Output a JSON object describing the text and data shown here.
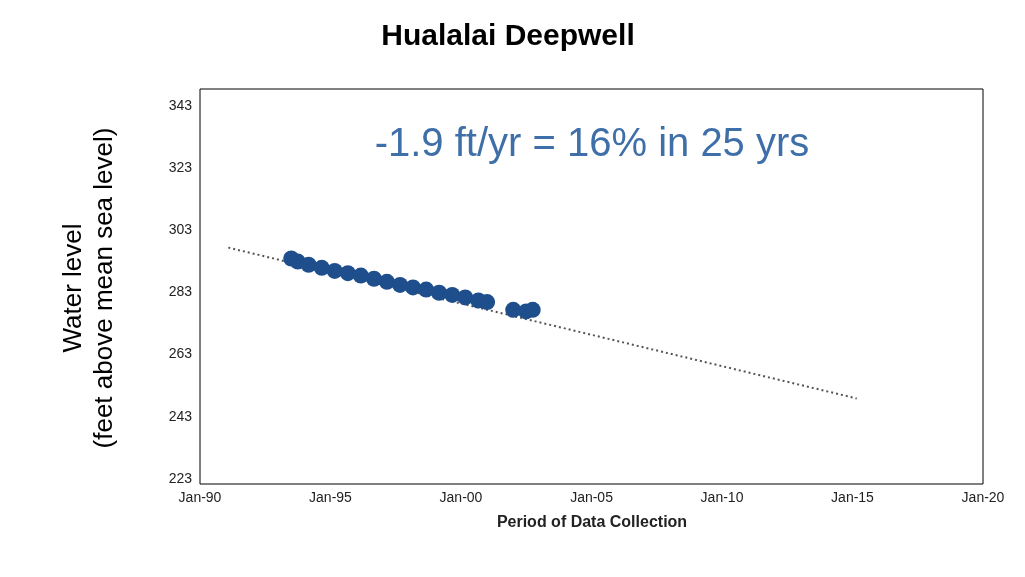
{
  "chart_data": {
    "type": "scatter",
    "title": "Hualalai Deepwell",
    "xlabel": "Period of Data Collection",
    "ylabel": "Water level\n(feet above mean sea level)",
    "annotations": [
      "-1.9 ft/yr = 16% in 25 yrs"
    ],
    "x": [
      "1993-07",
      "1993-10",
      "1994-03",
      "1994-09",
      "1995-03",
      "1995-09",
      "1996-03",
      "1996-09",
      "1997-03",
      "1997-09",
      "1998-03",
      "1998-09",
      "1999-03",
      "1999-09",
      "2000-03",
      "2000-09",
      "2001-01",
      "2002-01",
      "2002-07",
      "2002-10"
    ],
    "series": [
      {
        "color": "#1f4e8c",
        "marker": "circle",
        "values": [
          293.5,
          292.5,
          291.5,
          290.5,
          289.5,
          288.8,
          288,
          287,
          286,
          285,
          284.2,
          283.5,
          282.5,
          281.8,
          281,
          280,
          279.5,
          277,
          276.5,
          277
        ]
      },
      {
        "type": "line",
        "color": "#555555",
        "line_style": "dotted",
        "marker": "none",
        "x": [
          "1991-02",
          "2015-03"
        ],
        "values": [
          297,
          248.5
        ]
      }
    ],
    "xlim": [
      "1990-01",
      "2020-01"
    ],
    "xticks": [
      {
        "value": "1990-01",
        "label": "Jan-90"
      },
      {
        "value": "1995-01",
        "label": "Jan-95"
      },
      {
        "value": "2000-01",
        "label": "Jan-00"
      },
      {
        "value": "2005-01",
        "label": "Jan-05"
      },
      {
        "value": "2010-01",
        "label": "Jan-10"
      },
      {
        "value": "2015-01",
        "label": "Jan-15"
      },
      {
        "value": "2020-01",
        "label": "Jan-20"
      }
    ],
    "ylim": [
      221,
      348
    ],
    "yticks": [
      223,
      243,
      263,
      283,
      303,
      323,
      343
    ],
    "grid": false,
    "legend": false
  }
}
